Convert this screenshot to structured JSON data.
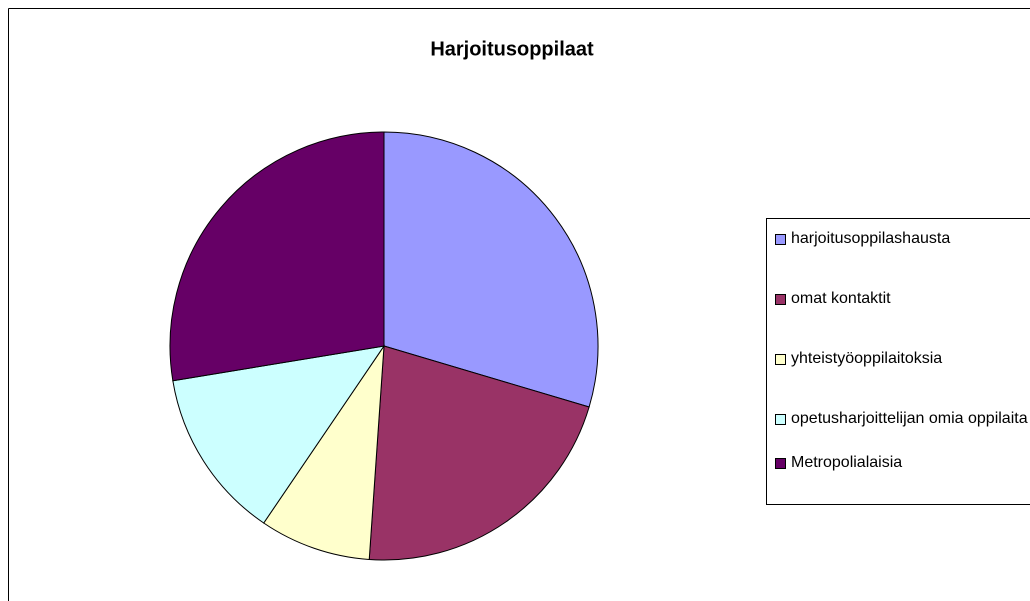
{
  "chart_data": {
    "type": "pie",
    "title": "Harjoitusoppilaat",
    "categories": [
      "harjoitusoppilashausta",
      "omat kontaktit",
      "yhteistyöoppilaitoksia",
      "opetusharjoittelijan omia oppilaita",
      "Metropolialaisia"
    ],
    "values": [
      29.6,
      21.5,
      8.4,
      12.9,
      27.6
    ],
    "colors": [
      "#9999ff",
      "#993366",
      "#ffffcc",
      "#ccffff",
      "#660066"
    ],
    "legend": "right"
  }
}
